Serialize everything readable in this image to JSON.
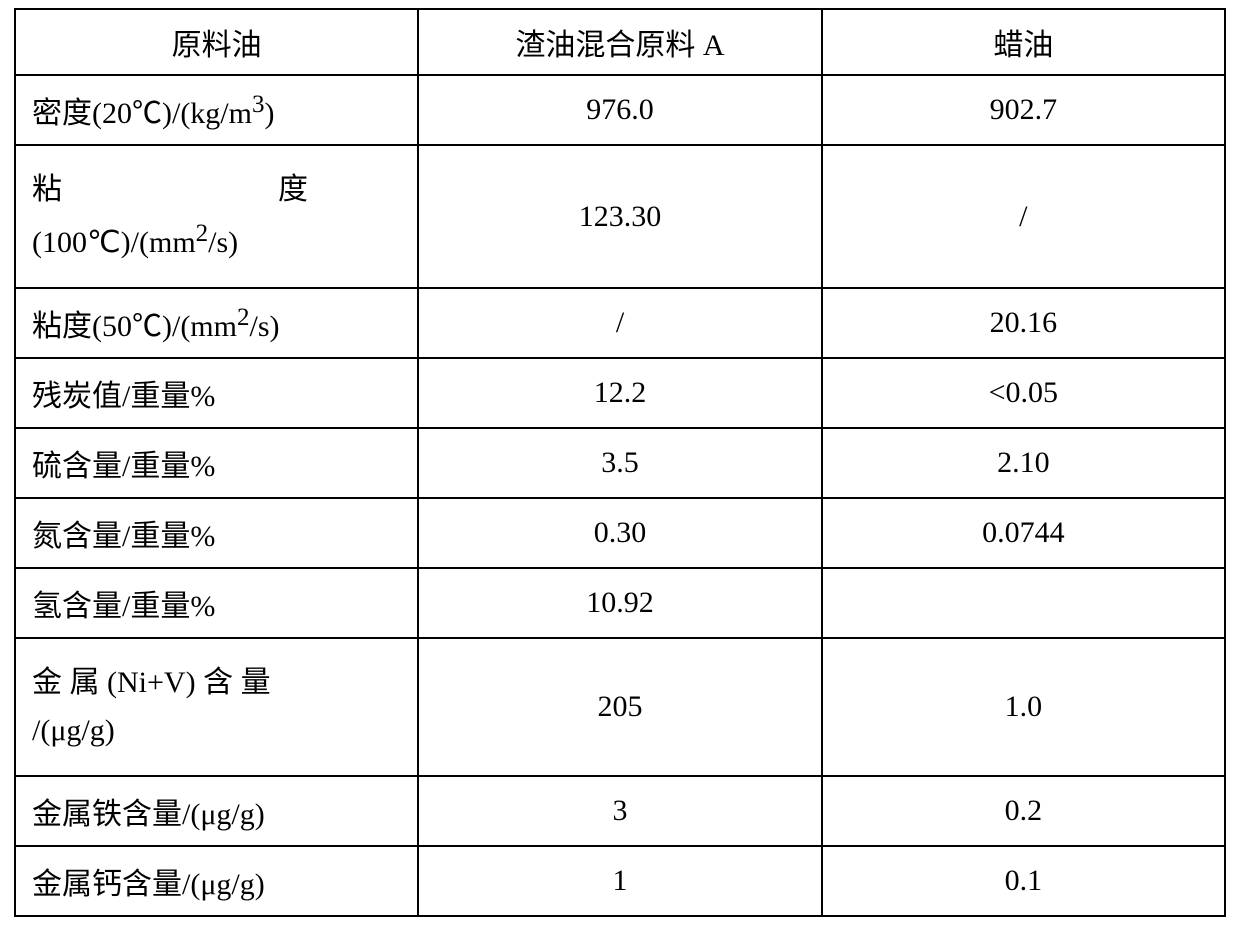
{
  "table": {
    "columns": [
      "原料油",
      "渣油混合原料 A",
      "蜡油"
    ],
    "rows": [
      {
        "label": "密度(20℃)/(kg/m³)",
        "label_html": "密度(20℃)/(kg/m<sup>3</sup>)",
        "col1": "976.0",
        "col2": "902.7",
        "tall": false,
        "justify": false
      },
      {
        "label": "粘度(100℃)/(mm²/s)",
        "label_html": "粘<span style='display:inline-block;width:7.2em'></span>度<br>(100℃)/(mm<sup>2</sup>/s)",
        "col1": "123.30",
        "col2": "/",
        "tall": true,
        "justify": false
      },
      {
        "label": "粘度(50℃)/(mm²/s)",
        "label_html": "粘度(50℃)/(mm<sup>2</sup>/s)",
        "col1": "/",
        "col2": "20.16",
        "tall": false,
        "justify": false
      },
      {
        "label": "残炭值/重量%",
        "label_html": "残炭值/重量%",
        "col1": "12.2",
        "col2": "<0.05",
        "tall": false,
        "justify": false
      },
      {
        "label": "硫含量/重量%",
        "label_html": "硫含量/重量%",
        "col1": "3.5",
        "col2": "2.10",
        "tall": false,
        "justify": false
      },
      {
        "label": "氮含量/重量%",
        "label_html": "氮含量/重量%",
        "col1": "0.30",
        "col2": "0.0744",
        "tall": false,
        "justify": false
      },
      {
        "label": "氢含量/重量%",
        "label_html": "氢含量/重量%",
        "col1": "10.92",
        "col2": "",
        "tall": false,
        "justify": false
      },
      {
        "label": "金属 (Ni+V) 含量/(μg/g)",
        "label_html": "金 属 (Ni+V) 含 量<br>/(μg/g)",
        "col1": "205",
        "col2": "1.0",
        "tall": true,
        "justify": false
      },
      {
        "label": "金属铁含量/(μg/g)",
        "label_html": "金属铁含量/(μg/g)",
        "col1": "3",
        "col2": "0.2",
        "tall": false,
        "justify": false
      },
      {
        "label": "金属钙含量/(μg/g)",
        "label_html": "金属钙含量/(μg/g)",
        "col1": "1",
        "col2": "0.1",
        "tall": false,
        "justify": false
      }
    ],
    "border_color": "#000000",
    "background_color": "#ffffff",
    "text_color": "#000000",
    "font_size": 30
  }
}
